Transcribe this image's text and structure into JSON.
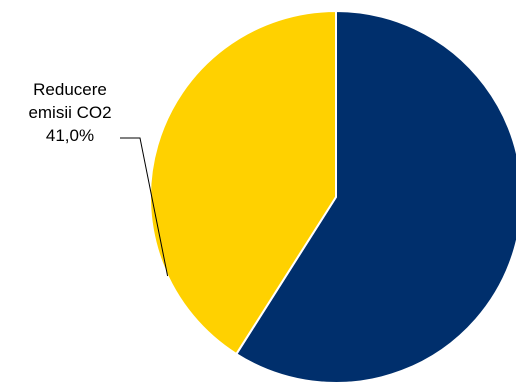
{
  "chart_data": {
    "type": "pie",
    "title": "",
    "start_angle_deg": 0,
    "direction": "clockwise",
    "slices": [
      {
        "value": 59.0,
        "color": "#002f6c",
        "label_lines": []
      },
      {
        "value": 41.0,
        "color": "#ffd100",
        "label_lines": [
          "Reducere",
          "emisii CO2",
          "41,0%"
        ]
      }
    ],
    "slice_edge_color": "#ffffff"
  }
}
